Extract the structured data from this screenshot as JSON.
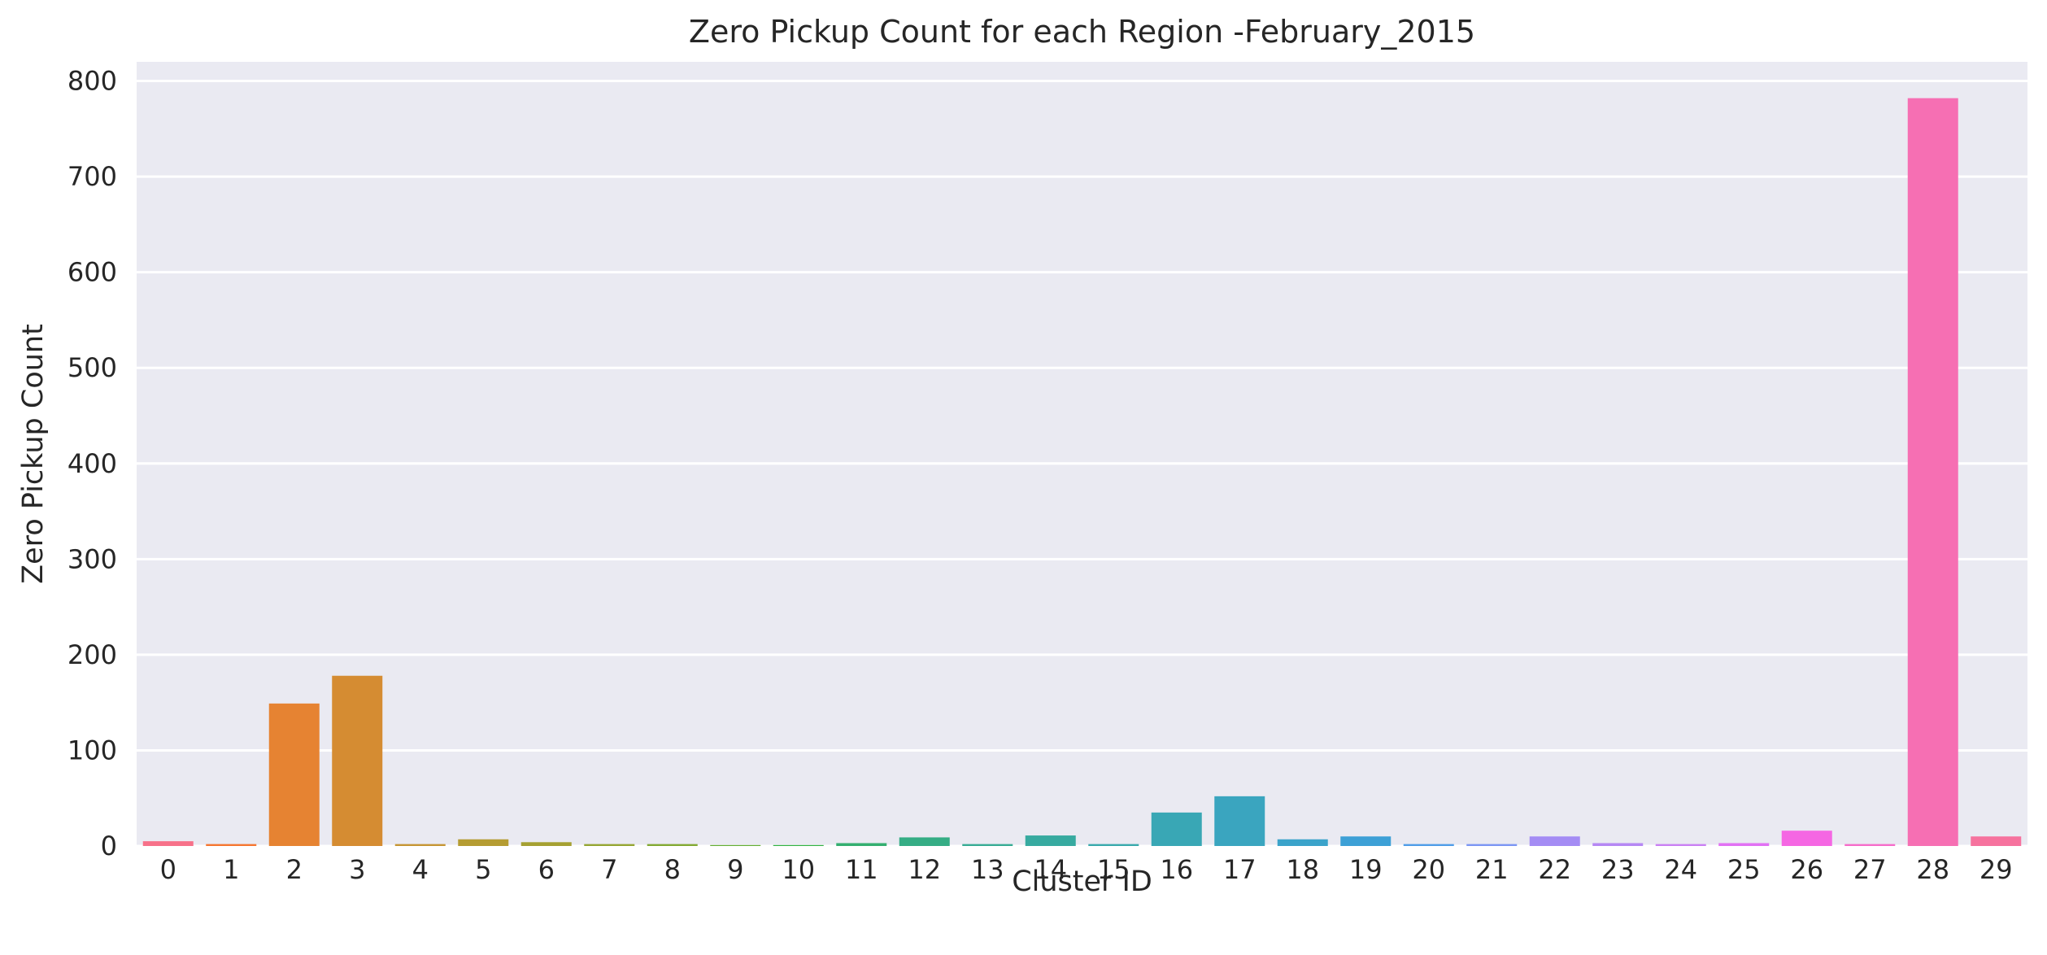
{
  "chart_data": {
    "type": "bar",
    "title": "Zero Pickup Count for each Region -February_2015",
    "xlabel": "Cluster ID",
    "ylabel": "Zero Pickup Count",
    "categories": [
      "0",
      "1",
      "2",
      "3",
      "4",
      "5",
      "6",
      "7",
      "8",
      "9",
      "10",
      "11",
      "12",
      "13",
      "14",
      "15",
      "16",
      "17",
      "18",
      "19",
      "20",
      "21",
      "22",
      "23",
      "24",
      "25",
      "26",
      "27",
      "28",
      "29"
    ],
    "values": [
      5,
      2,
      149,
      178,
      2,
      7,
      4,
      2,
      2,
      1,
      1,
      3,
      9,
      2,
      11,
      2,
      35,
      52,
      7,
      10,
      2,
      2,
      10,
      3,
      2,
      3,
      16,
      2,
      782,
      10
    ],
    "ylim": [
      0,
      820
    ],
    "yticks": [
      0,
      100,
      200,
      300,
      400,
      500,
      600,
      700,
      800
    ],
    "grid": true,
    "legend": "none",
    "colors": [
      "#f77189",
      "#f57530",
      "#e68332",
      "#d58c32",
      "#c59533",
      "#b59c32",
      "#a5a032",
      "#94a532",
      "#82a932",
      "#63ad32",
      "#32b242",
      "#34af70",
      "#35ad85",
      "#36ab94",
      "#37aaa0",
      "#38a9ac",
      "#39a7b5",
      "#3aa5bf",
      "#3ba3ca",
      "#3da0d6",
      "#4e9ce8",
      "#7b95f4",
      "#a48cf4",
      "#b687f4",
      "#c97ff4",
      "#e171f4",
      "#f567e3",
      "#f66bca",
      "#f66fb3",
      "#f6729e"
    ],
    "plot_background": "#eaeaf2",
    "grid_color": "#ffffff"
  }
}
